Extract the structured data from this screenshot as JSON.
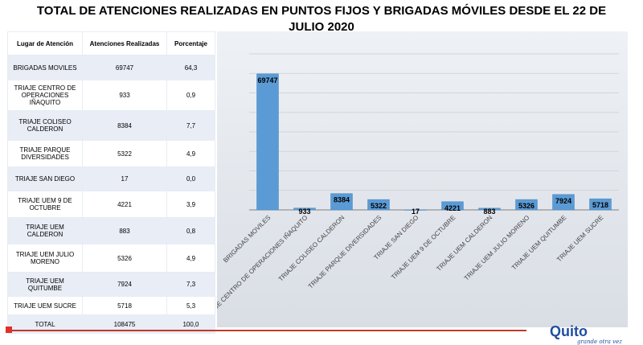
{
  "title": "TOTAL DE ATENCIONES REALIZADAS EN PUNTOS FIJOS Y BRIGADAS MÓVILES DESDE EL 22 DE JULIO 2020",
  "table": {
    "headers": [
      "Lugar de Atención",
      "Atenciones Realizadas",
      "Porcentaje"
    ],
    "rows": [
      {
        "name": "BRIGADAS MOVILES",
        "value": "69747",
        "pct": "64,3"
      },
      {
        "name": "TRIAJE CENTRO DE OPERACIONES IÑAQUITO",
        "value": "933",
        "pct": "0,9"
      },
      {
        "name": "TRIAJE COLISEO CALDERON",
        "value": "8384",
        "pct": "7,7"
      },
      {
        "name": "TRIAJE PARQUE DIVERSIDADES",
        "value": "5322",
        "pct": "4,9"
      },
      {
        "name": "TRIAJE SAN DIEGO",
        "value": "17",
        "pct": "0,0"
      },
      {
        "name": "TRIAJE UEM 9 DE OCTUBRE",
        "value": "4221",
        "pct": "3,9"
      },
      {
        "name": "TRIAJE UEM CALDERON",
        "value": "883",
        "pct": "0,8"
      },
      {
        "name": "TRIAJE UEM JULIO MORENO",
        "value": "5326",
        "pct": "4,9"
      },
      {
        "name": "TRIAJE UEM QUITUMBE",
        "value": "7924",
        "pct": "7,3"
      },
      {
        "name": "TRIAJE UEM SUCRE",
        "value": "5718",
        "pct": "5,3"
      },
      {
        "name": "TOTAL",
        "value": "108475",
        "pct": "100,0"
      }
    ]
  },
  "chart_data": {
    "type": "bar",
    "categories": [
      "BRIGADAS MOVILES",
      "TRIAJE CENTRO DE OPERACIONES IÑAQUITO",
      "TRIAJE COLISEO CALDERON",
      "TRIAJE PARQUE DIVERSIDADES",
      "TRIAJE SAN DIEGO",
      "TRIAJE UEM 9 DE OCTUBRE",
      "TRIAJE UEM CALDERON",
      "TRIAJE UEM JULIO MORENO",
      "TRIAJE UEM QUITUMBE",
      "TRIAJE UEM SUCRE"
    ],
    "values": [
      69747,
      933,
      8384,
      5322,
      17,
      4221,
      883,
      5326,
      7924,
      5718
    ],
    "ylim": [
      0,
      80000
    ],
    "grid": true,
    "bar_color": "#5b9bd5"
  },
  "logo": {
    "text": "Quito",
    "tagline": "grande otra vez"
  }
}
